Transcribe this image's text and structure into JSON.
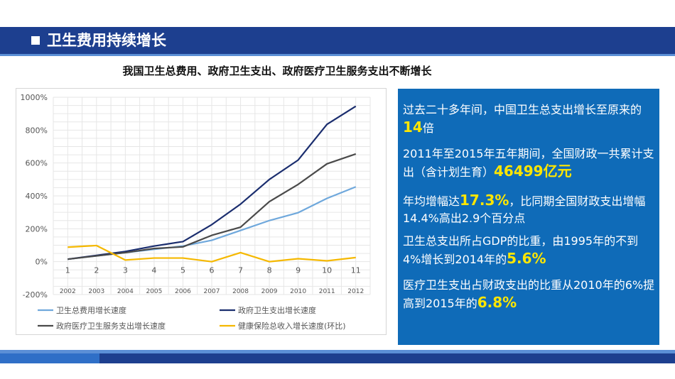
{
  "header": {
    "title": "卫生费用持续增长"
  },
  "subtitle": "我国卫生总费用、政府卫生支出、政府医疗卫生服务支出不断增长",
  "chart_data": {
    "type": "line",
    "x_index_labels": [
      "1",
      "2",
      "3",
      "4",
      "5",
      "6",
      "7",
      "8",
      "9",
      "10",
      "11"
    ],
    "x_year_labels": [
      "2002",
      "2003",
      "2004",
      "2005",
      "2006",
      "2007",
      "2008",
      "2009",
      "2010",
      "2011",
      "2012"
    ],
    "y_tick_labels": [
      "1000%",
      "800%",
      "600%",
      "400%",
      "200%",
      "0%",
      "-200%"
    ],
    "y_ticks": [
      1000,
      800,
      600,
      400,
      200,
      0,
      -200
    ],
    "ylim": [
      -200,
      1000
    ],
    "grid": true,
    "legend_position": "bottom",
    "series": [
      {
        "name": "卫生总费用增长速度",
        "color": "#6fa8dc",
        "values": [
          15,
          35,
          55,
          75,
          95,
          130,
          190,
          250,
          298,
          385,
          455
        ]
      },
      {
        "name": "政府卫生支出增长速度",
        "color": "#1a2d6e",
        "values": [
          15,
          38,
          62,
          95,
          122,
          225,
          350,
          500,
          618,
          835,
          945
        ]
      },
      {
        "name": "政府医疗卫生服务支出增长速度",
        "color": "#4a4a4a",
        "values": [
          15,
          35,
          55,
          80,
          90,
          160,
          210,
          365,
          470,
          595,
          655
        ]
      },
      {
        "name": "健康保险总收入增长速度(环比)",
        "color": "#f5b800",
        "values": [
          88,
          98,
          10,
          22,
          22,
          0,
          55,
          0,
          18,
          5,
          25
        ]
      }
    ]
  },
  "info": {
    "item1_text": "过去二十多年间，中国卫生总支出增长至原来的",
    "item1_hl": "14",
    "item1_suffix": "倍",
    "item2_text": "2011年至2015年五年期间，全国财政一共累计支出（含计划生育）",
    "item2_hl": "46499亿元",
    "item3_prefix": "年均增幅达",
    "item3_hl": "17.3%",
    "item3_text": "，比同期全国财政支出增幅14.4%高出2.9个百分点",
    "item4_text": "卫生总支出所占GDP的比重，由1995年的不到4%增长到2014年的",
    "item4_hl": "5.6%",
    "item5_text": "医疗卫生支出占财政支出的比重从2010年的6%提高到2015年的",
    "item5_hl": "6.8%"
  }
}
